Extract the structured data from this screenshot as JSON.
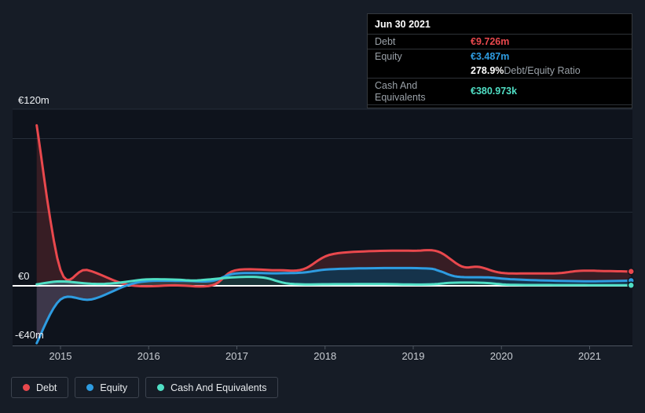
{
  "colors": {
    "debt": "#e9484d",
    "equity": "#2e9ce1",
    "cash": "#50dfc5",
    "zero_line": "#ffffff"
  },
  "tooltip": {
    "date": "Jun 30 2021",
    "debt_label": "Debt",
    "debt_value": "€9.726m",
    "equity_label": "Equity",
    "equity_value": "€3.487m",
    "ratio_value": "278.9%",
    "ratio_label": "Debt/Equity Ratio",
    "cash_label": "Cash And Equivalents",
    "cash_value": "€380.973k"
  },
  "legend": {
    "items": [
      {
        "label": "Debt",
        "color": "#e9484d"
      },
      {
        "label": "Equity",
        "color": "#2e9ce1"
      },
      {
        "label": "Cash And Equivalents",
        "color": "#50dfc5"
      }
    ]
  },
  "chart_data": {
    "type": "area",
    "unit": "EUR (€), values in millions",
    "highlight_date": "Jun 30 2021",
    "x_ticks": [
      2015,
      2016,
      2017,
      2018,
      2019,
      2020,
      2021
    ],
    "x_range": [
      2014.73,
      2021.5
    ],
    "y_range": [
      -40,
      120
    ],
    "y_ticks": [
      {
        "label": "€120m",
        "value": 120
      },
      {
        "label": "€0",
        "value": 0
      },
      {
        "label": "-€40m",
        "value": -40
      }
    ],
    "y_minor_gridlines": [
      100,
      50
    ],
    "grid": true,
    "legend_position": "bottom-left",
    "series": [
      {
        "name": "Debt",
        "color": "#e9484d",
        "points": [
          [
            2014.73,
            109
          ],
          [
            2015.0,
            10.8
          ],
          [
            2015.3,
            10.8
          ],
          [
            2015.78,
            0.5
          ],
          [
            2016.3,
            0.3
          ],
          [
            2016.72,
            0.3
          ],
          [
            2016.98,
            10.5
          ],
          [
            2017.45,
            10.6
          ],
          [
            2017.75,
            11.2
          ],
          [
            2018.05,
            21.0
          ],
          [
            2018.5,
            23.5
          ],
          [
            2019.0,
            23.8
          ],
          [
            2019.28,
            23.3
          ],
          [
            2019.55,
            13.2
          ],
          [
            2019.75,
            12.8
          ],
          [
            2020.0,
            8.8
          ],
          [
            2020.35,
            8.4
          ],
          [
            2020.65,
            8.6
          ],
          [
            2020.9,
            10.2
          ],
          [
            2021.2,
            10.0
          ],
          [
            2021.47,
            9.726
          ]
        ]
      },
      {
        "name": "Equity",
        "color": "#2e9ce1",
        "points": [
          [
            2014.73,
            -39
          ],
          [
            2015.0,
            -9.3
          ],
          [
            2015.35,
            -9.3
          ],
          [
            2015.75,
            0.2
          ],
          [
            2016.0,
            3.2
          ],
          [
            2016.4,
            3.3
          ],
          [
            2016.72,
            3.3
          ],
          [
            2016.98,
            8.3
          ],
          [
            2017.45,
            8.5
          ],
          [
            2017.75,
            9.0
          ],
          [
            2018.05,
            11.2
          ],
          [
            2018.6,
            12.0
          ],
          [
            2019.15,
            11.8
          ],
          [
            2019.3,
            10.0
          ],
          [
            2019.5,
            6.2
          ],
          [
            2019.85,
            5.7
          ],
          [
            2020.1,
            4.5
          ],
          [
            2020.5,
            3.6
          ],
          [
            2021.0,
            3.1
          ],
          [
            2021.47,
            3.487
          ]
        ]
      },
      {
        "name": "Cash And Equivalents",
        "color": "#50dfc5",
        "points": [
          [
            2014.73,
            1.0
          ],
          [
            2015.0,
            3.0
          ],
          [
            2015.35,
            1.4
          ],
          [
            2015.6,
            1.7
          ],
          [
            2015.97,
            4.3
          ],
          [
            2016.3,
            4.2
          ],
          [
            2016.55,
            3.7
          ],
          [
            2016.98,
            5.8
          ],
          [
            2017.3,
            5.6
          ],
          [
            2017.6,
            1.4
          ],
          [
            2018.1,
            1.1
          ],
          [
            2018.6,
            1.2
          ],
          [
            2019.15,
            0.9
          ],
          [
            2019.45,
            2.1
          ],
          [
            2019.8,
            2.0
          ],
          [
            2020.1,
            0.7
          ],
          [
            2020.6,
            0.5
          ],
          [
            2021.0,
            0.45
          ],
          [
            2021.47,
            0.381
          ]
        ]
      }
    ]
  }
}
